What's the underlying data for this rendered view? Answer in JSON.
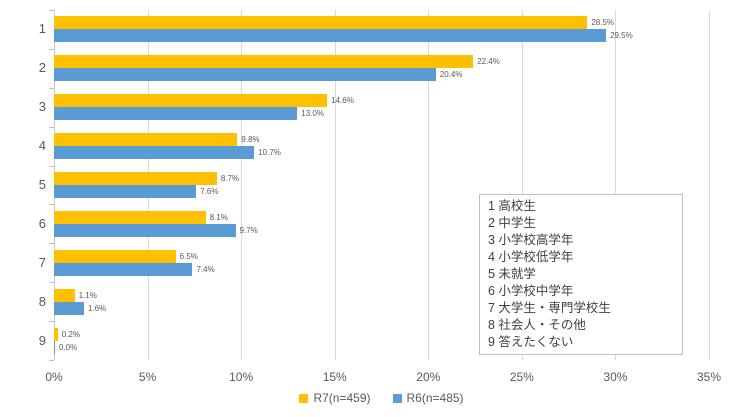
{
  "colors": {
    "series_r7": "#FFC000",
    "series_r6": "#5B9BD5",
    "axis_text": "#595959",
    "gridline": "#D9D9D9",
    "annotation_border": "#BFBFBF",
    "annotation_text": "#404040"
  },
  "chart_data": {
    "type": "bar",
    "orientation": "horizontal",
    "title": "",
    "xlabel": "",
    "ylabel": "",
    "categories": [
      "1",
      "2",
      "3",
      "4",
      "5",
      "6",
      "7",
      "8",
      "9"
    ],
    "series": [
      {
        "name": "R7(n=459)",
        "color": "#FFC000",
        "values": [
          28.5,
          22.4,
          14.6,
          9.8,
          8.7,
          8.1,
          6.5,
          1.1,
          0.2
        ]
      },
      {
        "name": "R6(n=485)",
        "color": "#5B9BD5",
        "values": [
          29.5,
          20.4,
          13.0,
          10.7,
          7.6,
          9.7,
          7.4,
          1.6,
          0.0
        ]
      }
    ],
    "xlim": [
      0,
      35
    ],
    "x_ticks": [
      "0%",
      "5%",
      "10%",
      "15%",
      "20%",
      "25%",
      "30%",
      "35%"
    ],
    "grid": true,
    "data_labels": true,
    "legend_position": "bottom"
  },
  "annotation_box": {
    "lines": [
      "1 高校生",
      "2 中学生",
      "3 小学校高学年",
      "4 小学校低学年",
      "5 未就学",
      "6 小学校中学年",
      "7 大学生・専門学校生",
      "8 社会人・その他",
      "9 答えたくない"
    ]
  }
}
